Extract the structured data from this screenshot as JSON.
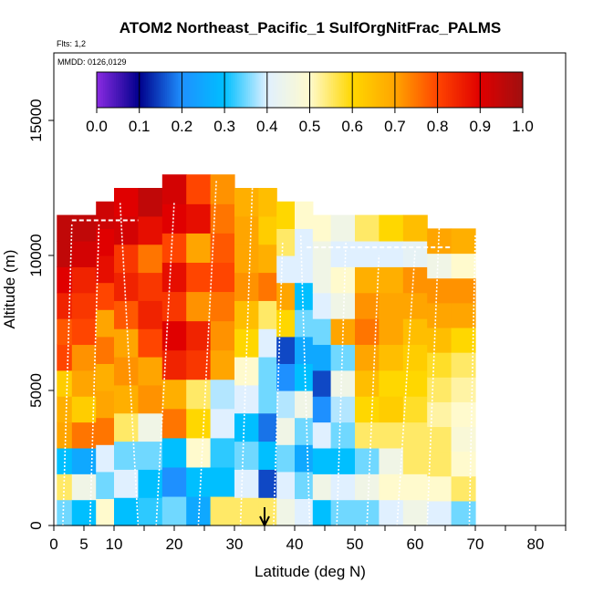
{
  "chart_data": {
    "type": "heatmap",
    "title": "ATOM2 Northeast_Pacific_1 SulfOrgNitFrac_PALMS",
    "subtitle_flights": "Flts: 1,2",
    "subtitle_dates": "MMDD: 0126,0129",
    "xlabel": "Latitude (deg N)",
    "ylabel": "Altitude (m)",
    "xlim": [
      0,
      85
    ],
    "ylim": [
      0,
      17500
    ],
    "xticks": [
      0,
      5,
      10,
      20,
      30,
      40,
      50,
      60,
      70,
      80
    ],
    "xminor": [
      10,
      15,
      20,
      25,
      30,
      35,
      40,
      45,
      50,
      55,
      60,
      65,
      70,
      75,
      80,
      85
    ],
    "yticks": [
      0,
      5000,
      10000,
      15000
    ],
    "colorbar": {
      "min": 0.0,
      "max": 1.0,
      "ticks": [
        "0.0",
        "0.1",
        "0.2",
        "0.3",
        "0.4",
        "0.5",
        "0.6",
        "0.7",
        "0.8",
        "0.9",
        "1.0"
      ],
      "colors": [
        "#8a2be2",
        "#00008b",
        "#1e90ff",
        "#00bfff",
        "#e0f0ff",
        "#fffacd",
        "#ffd700",
        "#ffa500",
        "#ff4500",
        "#e00000",
        "#a01010"
      ]
    },
    "marker": {
      "latitude": 35,
      "symbol": "arrow"
    },
    "columns": [
      {
        "lat0": 0.5,
        "lat1": 3,
        "top": 11500,
        "values": [
          0.35,
          0.55,
          0.3,
          0.7,
          0.68,
          0.62,
          0.8,
          0.78,
          0.85,
          0.9,
          0.95,
          0.95
        ]
      },
      {
        "lat0": 3,
        "lat1": 7,
        "top": 11500,
        "values": [
          0.3,
          0.45,
          0.25,
          0.75,
          0.62,
          0.7,
          0.72,
          0.8,
          0.82,
          0.85,
          0.92,
          0.95
        ]
      },
      {
        "lat0": 7,
        "lat1": 10,
        "top": 12000,
        "values": [
          0.5,
          0.35,
          0.4,
          0.75,
          0.7,
          0.68,
          0.75,
          0.7,
          0.8,
          0.88,
          0.9,
          0.93
        ]
      },
      {
        "lat0": 10,
        "lat1": 14,
        "top": 12500,
        "values": [
          0.3,
          0.4,
          0.35,
          0.55,
          0.68,
          0.72,
          0.7,
          0.78,
          0.85,
          0.82,
          0.92,
          0.9
        ]
      },
      {
        "lat0": 14,
        "lat1": 18,
        "top": 12500,
        "values": [
          0.32,
          0.3,
          0.35,
          0.45,
          0.72,
          0.7,
          0.8,
          0.85,
          0.82,
          0.75,
          0.88,
          0.95
        ]
      },
      {
        "lat0": 18,
        "lat1": 22,
        "top": 13000,
        "values": [
          0.35,
          0.2,
          0.3,
          0.75,
          0.68,
          0.85,
          0.9,
          0.82,
          0.88,
          0.8,
          0.9,
          0.92
        ]
      },
      {
        "lat0": 22,
        "lat1": 26,
        "top": 13000,
        "values": [
          0.25,
          0.3,
          0.5,
          0.6,
          0.55,
          0.82,
          0.85,
          0.72,
          0.8,
          0.7,
          0.88,
          0.8
        ]
      },
      {
        "lat0": 26,
        "lat1": 30,
        "top": 13000,
        "values": [
          0.55,
          0.3,
          0.32,
          0.4,
          0.38,
          0.7,
          0.72,
          0.75,
          0.8,
          0.78,
          0.75,
          0.72
        ]
      },
      {
        "lat0": 30,
        "lat1": 34,
        "top": 12500,
        "values": [
          0.55,
          0.4,
          0.35,
          0.3,
          0.4,
          0.5,
          0.6,
          0.65,
          0.72,
          0.7,
          0.7,
          0.68
        ]
      },
      {
        "lat0": 34,
        "lat1": 37,
        "top": 12500,
        "values": [
          0.55,
          0.15,
          0.3,
          0.18,
          0.35,
          0.35,
          0.4,
          0.55,
          0.75,
          0.68,
          0.62,
          0.65
        ]
      },
      {
        "lat0": 37,
        "lat1": 40,
        "top": 12000,
        "values": [
          0.45,
          0.4,
          0.35,
          0.45,
          0.38,
          0.2,
          0.15,
          0.6,
          0.7,
          0.4,
          0.55,
          0.6
        ]
      },
      {
        "lat0": 40,
        "lat1": 43,
        "top": 12000,
        "values": [
          0.4,
          0.35,
          0.25,
          0.35,
          0.45,
          0.3,
          0.25,
          0.35,
          0.3,
          0.4,
          0.4,
          0.5
        ]
      },
      {
        "lat0": 43,
        "lat1": 46,
        "top": 11500,
        "values": [
          0.3,
          0.45,
          0.3,
          0.4,
          0.2,
          0.15,
          0.25,
          0.35,
          0.4,
          0.45,
          0.45,
          0.5
        ]
      },
      {
        "lat0": 46,
        "lat1": 50,
        "top": 11500,
        "values": [
          0.35,
          0.4,
          0.3,
          0.35,
          0.38,
          0.45,
          0.35,
          0.7,
          0.45,
          0.5,
          0.4,
          0.45
        ]
      },
      {
        "lat0": 50,
        "lat1": 54,
        "top": 11500,
        "values": [
          0.35,
          0.45,
          0.35,
          0.55,
          0.6,
          0.65,
          0.7,
          0.75,
          0.72,
          0.68,
          0.4,
          0.55
        ]
      },
      {
        "lat0": 54,
        "lat1": 58,
        "top": 11500,
        "values": [
          0.4,
          0.5,
          0.45,
          0.55,
          0.62,
          0.6,
          0.65,
          0.7,
          0.7,
          0.68,
          0.4,
          0.6
        ]
      },
      {
        "lat0": 58,
        "lat1": 62,
        "top": 11500,
        "values": [
          0.45,
          0.5,
          0.55,
          0.55,
          0.58,
          0.6,
          0.62,
          0.65,
          0.7,
          0.72,
          0.42,
          0.65
        ]
      },
      {
        "lat0": 62,
        "lat1": 66,
        "top": 11000,
        "values": [
          0.4,
          0.5,
          0.55,
          0.55,
          0.52,
          0.55,
          0.58,
          0.65,
          0.7,
          0.72,
          0.45,
          0.7
        ]
      },
      {
        "lat0": 66,
        "lat1": 70,
        "top": 11000,
        "values": [
          0.35,
          0.55,
          0.5,
          0.48,
          0.5,
          0.52,
          0.55,
          0.6,
          0.7,
          0.72,
          0.5,
          0.68
        ]
      }
    ]
  }
}
